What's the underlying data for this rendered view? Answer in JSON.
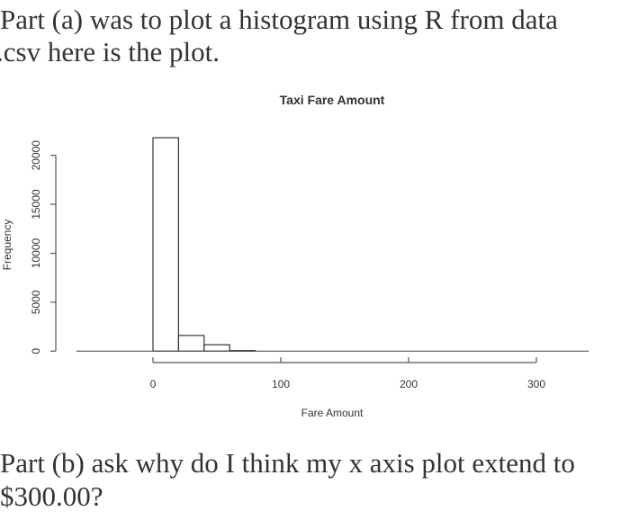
{
  "question": {
    "part_a_line1": "Part (a) was to plot a histogram using R from data",
    "part_a_line2": ".csv here is the plot.",
    "part_b_line1": "Part (b) ask why do I think my x axis plot extend to",
    "part_b_line2": "$300.00?"
  },
  "chart_data": {
    "type": "bar",
    "title": "Taxi Fare Amount",
    "xlabel": "Fare Amount",
    "ylabel": "Frequency",
    "bins": [
      [
        0,
        20
      ],
      [
        20,
        40
      ],
      [
        40,
        60
      ],
      [
        60,
        80
      ]
    ],
    "values": [
      21800,
      1600,
      650,
      60
    ],
    "xlim": [
      -60,
      341
    ],
    "ylim": [
      0,
      22000
    ],
    "xticks": [
      "0",
      "100",
      "200",
      "300"
    ],
    "xtick_values": [
      0,
      100,
      200,
      300
    ],
    "yticks": [
      "0",
      "5000",
      "10000",
      "15000",
      "20000"
    ],
    "ytick_values": [
      0,
      5000,
      10000,
      15000,
      20000
    ],
    "grid": false,
    "colors": {
      "bar_fill": "#ffffff",
      "bar_stroke": "#333333"
    }
  }
}
